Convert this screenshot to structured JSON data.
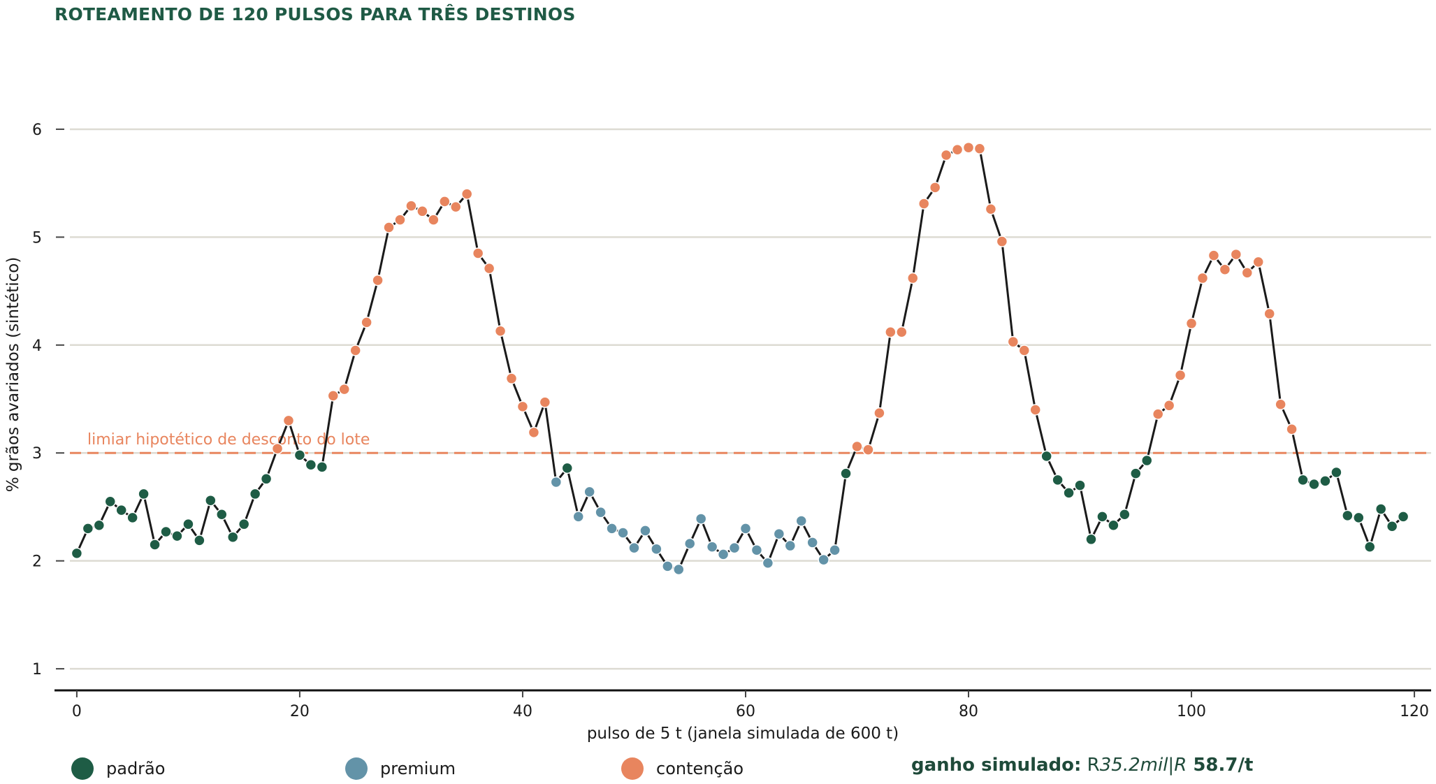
{
  "title": "ROTEAMENTO DE 120 PULSOS PARA TRÊS DESTINOS",
  "note": {
    "bold_a": "ganho simulado:",
    "plain_b": " R",
    "ital": "35.2mil|R",
    "bold_c": " 58.7/t"
  },
  "legend": [
    {
      "label": "padrão",
      "color": "#1e5c45"
    },
    {
      "label": "premium",
      "color": "#6393a8"
    },
    {
      "label": "contenção",
      "color": "#e8855e"
    }
  ],
  "chart_data": {
    "type": "line",
    "title": "ROTEAMENTO DE 120 PULSOS PARA TRÊS DESTINOS",
    "xlabel": "pulso de 5 t (janela simulada de 600 t)",
    "ylabel": "% grãos avariados (sintético)",
    "xlim": [
      -2,
      121.5
    ],
    "ylim": [
      0.8,
      6.55
    ],
    "xticks": [
      0,
      20,
      40,
      60,
      80,
      100,
      120
    ],
    "yticks": [
      1,
      2,
      3,
      4,
      5,
      6
    ],
    "grid": "horizontal",
    "threshold": {
      "value": 3.0,
      "label": "limiar hipotético de desconto do lote",
      "color": "#e8855e"
    },
    "colors": {
      "padrao": "#1e5c45",
      "premium": "#6393a8",
      "contencao": "#e8855e",
      "line": "#1a1a1a"
    },
    "categories_legend": [
      "padrão",
      "premium",
      "contenção"
    ],
    "y": [
      2.07,
      2.3,
      2.33,
      2.55,
      2.47,
      2.4,
      2.62,
      2.15,
      2.27,
      2.23,
      2.34,
      2.19,
      2.56,
      2.43,
      2.22,
      2.34,
      2.62,
      2.76,
      3.04,
      3.3,
      2.98,
      2.89,
      2.87,
      3.53,
      3.59,
      3.95,
      4.21,
      4.6,
      5.09,
      5.16,
      5.29,
      5.24,
      5.16,
      5.33,
      5.28,
      5.4,
      4.85,
      4.71,
      4.13,
      3.69,
      3.43,
      3.19,
      3.47,
      2.73,
      2.86,
      2.41,
      2.64,
      2.45,
      2.3,
      2.26,
      2.12,
      2.28,
      2.11,
      1.95,
      1.92,
      2.16,
      2.39,
      2.13,
      2.06,
      2.12,
      2.3,
      2.1,
      1.98,
      2.25,
      2.14,
      2.37,
      2.17,
      2.01,
      2.1,
      2.81,
      3.06,
      3.03,
      3.37,
      4.12,
      4.12,
      4.62,
      5.31,
      5.46,
      5.76,
      5.81,
      5.83,
      5.82,
      5.26,
      4.96,
      4.03,
      3.95,
      3.4,
      2.97,
      2.75,
      2.63,
      2.7,
      2.2,
      2.41,
      2.33,
      2.43,
      2.81,
      2.93,
      3.36,
      3.44,
      3.72,
      4.2,
      4.62,
      4.83,
      4.7,
      4.84,
      4.67,
      4.77,
      4.29,
      3.45,
      3.22,
      2.75,
      2.71,
      2.74,
      2.82,
      2.42,
      2.4,
      2.13,
      2.48,
      2.32,
      2.41
    ],
    "destino": [
      "p",
      "p",
      "p",
      "p",
      "p",
      "p",
      "p",
      "p",
      "p",
      "p",
      "p",
      "p",
      "p",
      "p",
      "p",
      "p",
      "p",
      "p",
      "c",
      "c",
      "p",
      "p",
      "p",
      "c",
      "c",
      "c",
      "c",
      "c",
      "c",
      "c",
      "c",
      "c",
      "c",
      "c",
      "c",
      "c",
      "c",
      "c",
      "c",
      "c",
      "c",
      "c",
      "c",
      "m",
      "p",
      "m",
      "m",
      "m",
      "m",
      "m",
      "m",
      "m",
      "m",
      "m",
      "m",
      "m",
      "m",
      "m",
      "m",
      "m",
      "m",
      "m",
      "m",
      "m",
      "m",
      "m",
      "m",
      "m",
      "m",
      "p",
      "c",
      "c",
      "c",
      "c",
      "c",
      "c",
      "c",
      "c",
      "c",
      "c",
      "c",
      "c",
      "c",
      "c",
      "c",
      "c",
      "c",
      "p",
      "p",
      "p",
      "p",
      "p",
      "p",
      "p",
      "p",
      "p",
      "p",
      "c",
      "c",
      "c",
      "c",
      "c",
      "c",
      "c",
      "c",
      "c",
      "c",
      "c",
      "c",
      "c",
      "p",
      "p",
      "p",
      "p",
      "p",
      "p",
      "p",
      "p",
      "p",
      "p"
    ]
  }
}
